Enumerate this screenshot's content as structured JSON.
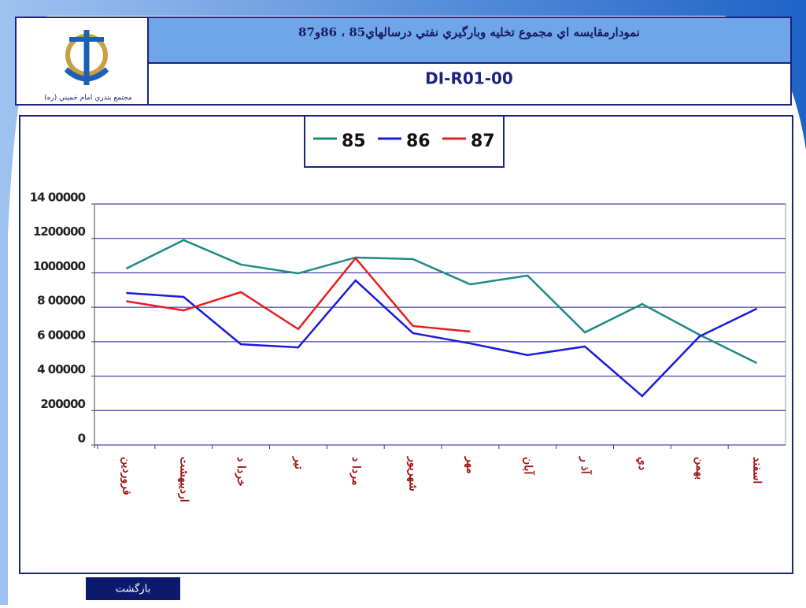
{
  "header": {
    "title": "نمودارمقايسه اي مجموع تخليه وبارگيري نفتي درسالهاي85 ، 86و87",
    "code": "DI-R01-00",
    "logo_caption": "مجتمع بندري امام خميني (ره)"
  },
  "back_button": "بازگشت",
  "chart_data": {
    "type": "line",
    "categories": [
      "فروردين",
      "ارديبهشت",
      "خردا د",
      "تير",
      "مردا د",
      "شهريور",
      "مهر",
      "آبان",
      "آذ ر",
      "دي",
      "بهمن",
      "اسفند"
    ],
    "series": [
      {
        "name": "85",
        "color": "#1f8a80",
        "values": [
          1025000,
          1190000,
          1048000,
          997000,
          1089000,
          1080000,
          933000,
          984000,
          654000,
          819000,
          640000,
          476000
        ]
      },
      {
        "name": "86",
        "color": "#1a1adc",
        "values": [
          883000,
          860000,
          585000,
          567000,
          956000,
          650000,
          590000,
          522000,
          572000,
          284000,
          631000,
          792000
        ]
      },
      {
        "name": "87",
        "color": "#e81c1c",
        "values": [
          835000,
          782000,
          888000,
          673000,
          1085000,
          691000,
          659000,
          null,
          null,
          null,
          null,
          null
        ]
      }
    ],
    "ylim": [
      0,
      1400000
    ],
    "yticks": [
      0,
      200000,
      {
        "value": 400000,
        "label": "4 00000"
      },
      {
        "value": 600000,
        "label": "6 00000"
      },
      {
        "value": 800000,
        "label": "8 00000"
      },
      1000000,
      1200000,
      {
        "value": 1400000,
        "label": "14 00000"
      }
    ],
    "grid": true,
    "legend": "top"
  }
}
